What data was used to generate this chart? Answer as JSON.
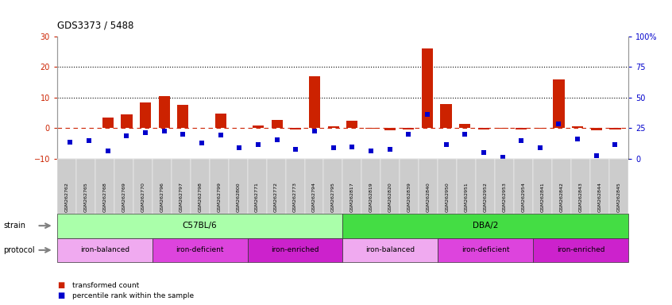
{
  "title": "GDS3373 / 5488",
  "samples": [
    "GSM262762",
    "GSM262765",
    "GSM262768",
    "GSM262769",
    "GSM262770",
    "GSM262796",
    "GSM262797",
    "GSM262798",
    "GSM262799",
    "GSM262800",
    "GSM262771",
    "GSM262772",
    "GSM262773",
    "GSM262794",
    "GSM262795",
    "GSM262817",
    "GSM262819",
    "GSM262820",
    "GSM262839",
    "GSM262840",
    "GSM262950",
    "GSM262951",
    "GSM262952",
    "GSM262953",
    "GSM262954",
    "GSM262841",
    "GSM262842",
    "GSM262843",
    "GSM262844",
    "GSM262845"
  ],
  "red_bars": [
    0.2,
    0.1,
    3.5,
    4.5,
    8.5,
    10.5,
    7.5,
    0.2,
    4.8,
    0.2,
    0.9,
    2.8,
    -0.5,
    17.0,
    0.5,
    2.5,
    -0.3,
    -0.8,
    -0.5,
    26.0,
    7.8,
    1.5,
    -0.5,
    -0.3,
    -0.5,
    -0.2,
    16.0,
    0.5,
    -0.8,
    -0.5
  ],
  "blue_squares": [
    -4.5,
    -4.0,
    -7.5,
    -2.5,
    -1.5,
    -1.0,
    -2.0,
    -4.8,
    -2.2,
    -6.5,
    -5.5,
    -3.8,
    -7.0,
    -1.0,
    -6.5,
    -6.2,
    -7.5,
    -7.0,
    -2.0,
    4.5,
    -5.5,
    -2.0,
    -8.0,
    -9.5,
    -4.0,
    -6.5,
    1.5,
    -3.5,
    -9.0,
    -5.5
  ],
  "strain_groups": [
    {
      "label": "C57BL/6",
      "start": 0,
      "end": 15,
      "color": "#aaffaa"
    },
    {
      "label": "DBA/2",
      "start": 15,
      "end": 30,
      "color": "#44dd44"
    }
  ],
  "protocol_groups": [
    {
      "label": "iron-balanced",
      "start": 0,
      "end": 5,
      "color": "#f0a0f0"
    },
    {
      "label": "iron-deficient",
      "start": 5,
      "end": 10,
      "color": "#dd44dd"
    },
    {
      "label": "iron-enriched",
      "start": 10,
      "end": 15,
      "color": "#ee22ee"
    },
    {
      "label": "iron-balanced",
      "start": 15,
      "end": 20,
      "color": "#f0a0f0"
    },
    {
      "label": "iron-deficient",
      "start": 20,
      "end": 25,
      "color": "#dd44dd"
    },
    {
      "label": "iron-enriched",
      "start": 25,
      "end": 30,
      "color": "#ee22ee"
    }
  ],
  "ylim_left": [
    -10,
    30
  ],
  "ylim_right": [
    0,
    100
  ],
  "yticks_left": [
    -10,
    0,
    10,
    20,
    30
  ],
  "yticks_right": [
    0,
    25,
    50,
    75,
    100
  ],
  "bar_color": "#cc2200",
  "square_color": "#0000cc",
  "dashed_line_color": "#cc2200",
  "grid_color": "#000000",
  "bg_color": "#ffffff",
  "tick_bg_color": "#cccccc"
}
